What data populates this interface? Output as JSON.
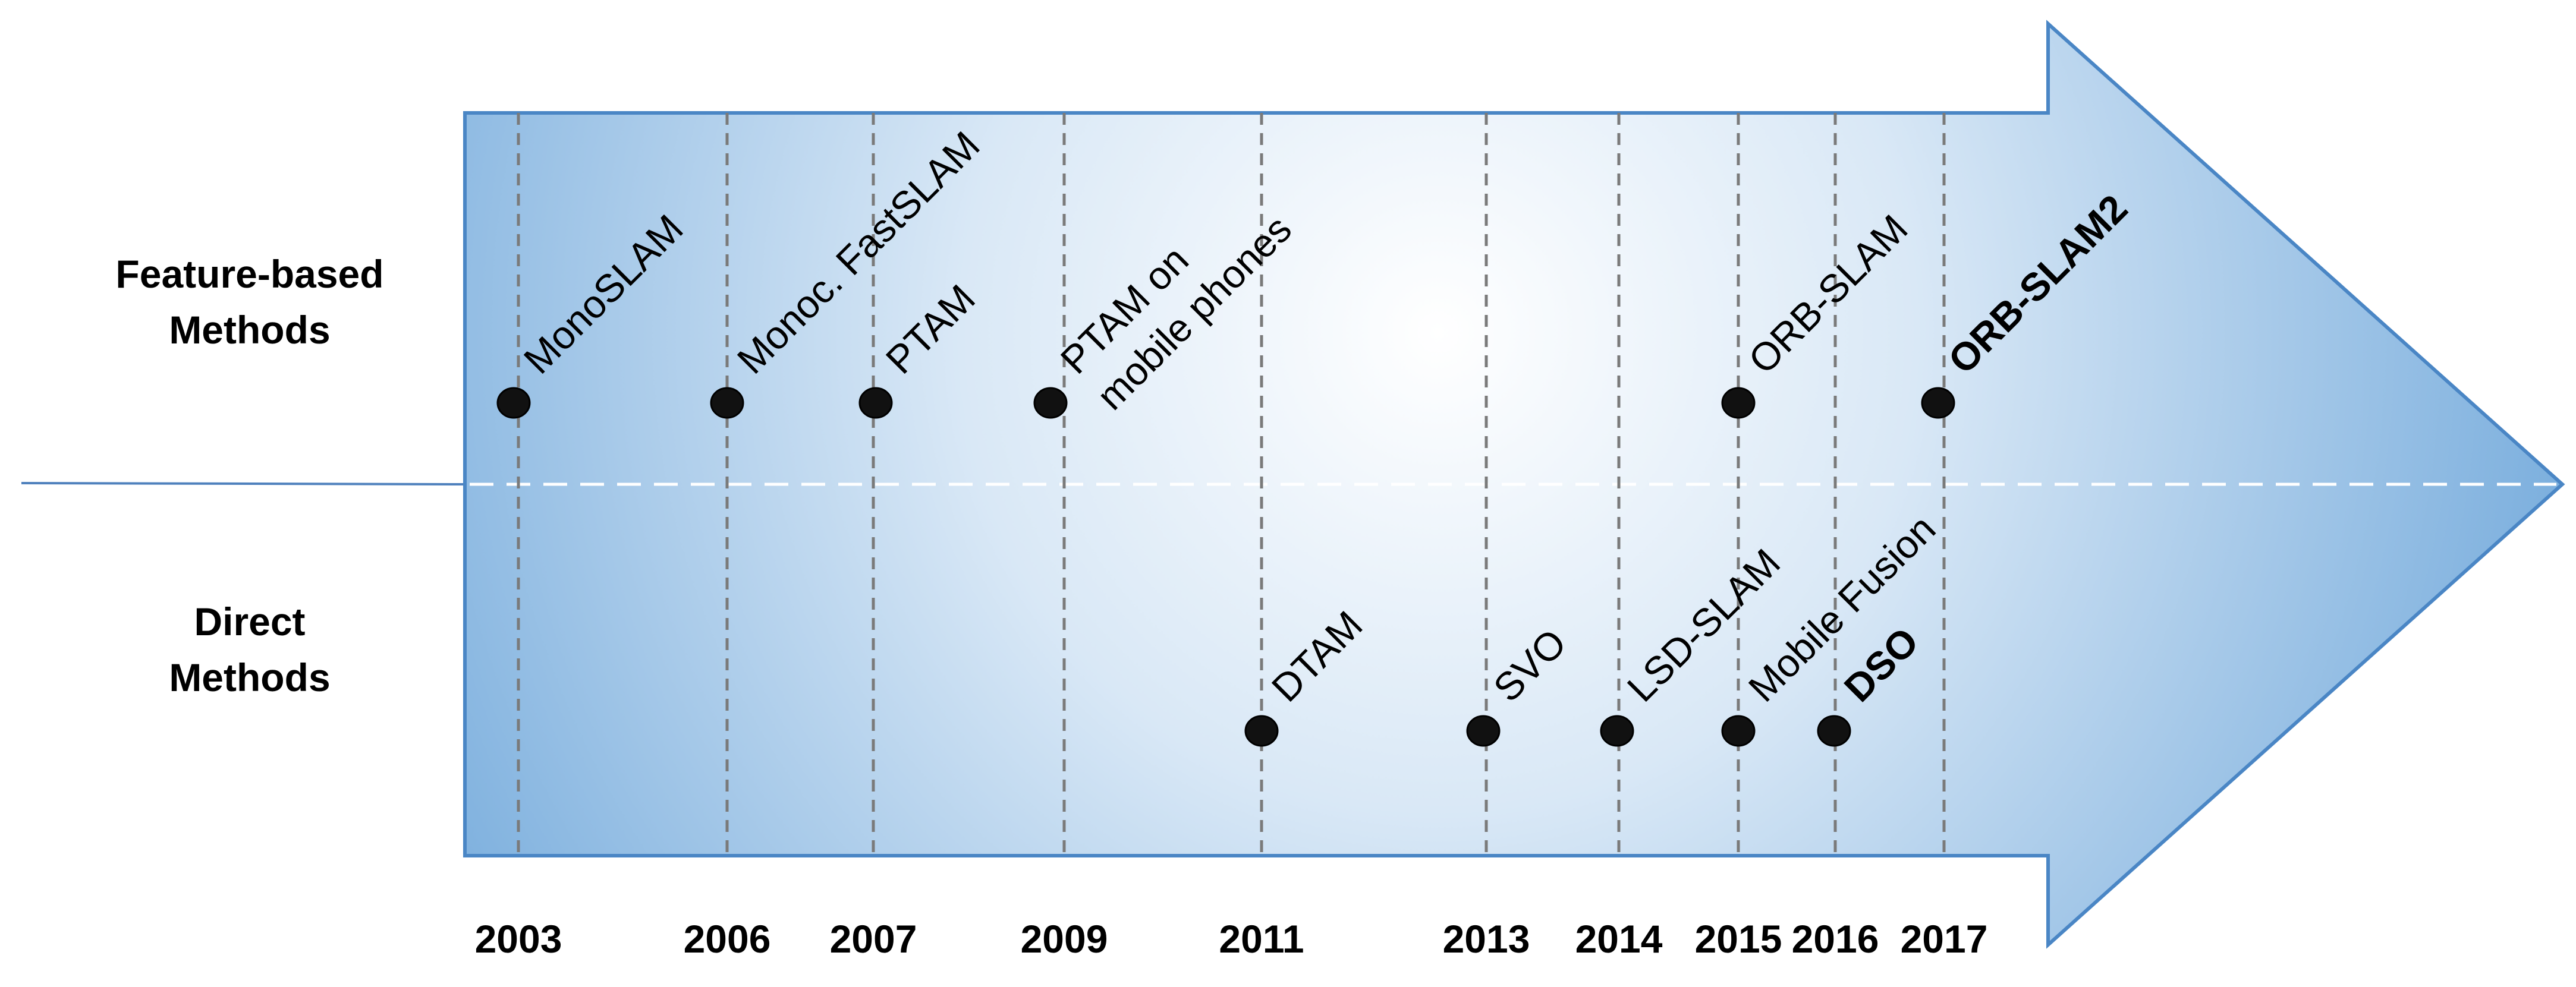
{
  "row_labels": {
    "feature": [
      "Feature-based",
      "Methods"
    ],
    "direct": [
      "Direct",
      "Methods"
    ]
  },
  "years": [
    "2003",
    "2006",
    "2007",
    "2009",
    "2011",
    "2013",
    "2014",
    "2015",
    "2016",
    "2017"
  ],
  "feature_methods": [
    {
      "year": "2003",
      "lines": [
        "MonoSLAM"
      ],
      "bold": false
    },
    {
      "year": "2006",
      "lines": [
        "Monoc. FastSLAM"
      ],
      "bold": false
    },
    {
      "year": "2007",
      "lines": [
        "PTAM"
      ],
      "bold": false
    },
    {
      "year": "2009",
      "lines": [
        "PTAM on",
        "mobile phones"
      ],
      "bold": false
    },
    {
      "year": "2015",
      "lines": [
        "ORB-SLAM"
      ],
      "bold": false
    },
    {
      "year": "2017",
      "lines": [
        "ORB-SLAM2"
      ],
      "bold": true
    }
  ],
  "direct_methods": [
    {
      "year": "2011",
      "lines": [
        "DTAM"
      ],
      "bold": false
    },
    {
      "year": "2013",
      "lines": [
        "SVO"
      ],
      "bold": false
    },
    {
      "year": "2014",
      "lines": [
        "LSD-SLAM"
      ],
      "bold": false
    },
    {
      "year": "2015",
      "lines": [
        "Mobile Fusion"
      ],
      "bold": false
    },
    {
      "year": "2016",
      "lines": [
        "DSO"
      ],
      "bold": true
    }
  ],
  "colors": {
    "arrow_edge": "#4a86c5",
    "arrow_light": "#ffffff",
    "arrow_dark": "#5b9bd5",
    "dot": "#111111",
    "gridline": "#7a7a7a",
    "divider": "#ffffff",
    "axis_line": "#4f81bd"
  }
}
